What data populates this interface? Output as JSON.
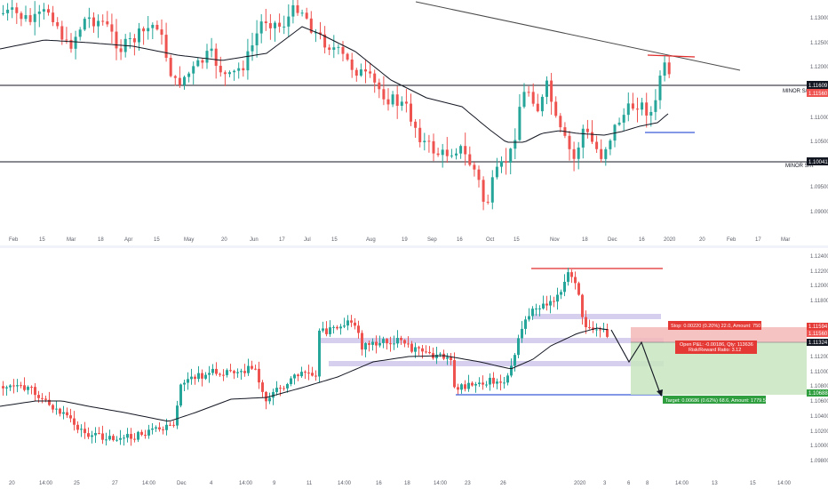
{
  "colors": {
    "up": "#26a69a",
    "down": "#ef5350",
    "ma": "#131722",
    "trendline": "#4a4a4a",
    "resistance": "#e02a2a",
    "support": "#3a5bd9",
    "sr_line": "#131722",
    "zone": "#c9bfe8",
    "stop_zone": "#f5b8b8",
    "target_zone": "#c8e6c0",
    "stop_badge": "#e53935",
    "target_badge": "#2e9e3e",
    "axis_text": "#5d606b",
    "price_badge_dark": "#131722"
  },
  "top_chart": {
    "price_axis": [
      "1.13000",
      "1.12500",
      "1.12000",
      "1.11609",
      "1.11560",
      "1.11000",
      "1.10500",
      "1.10041",
      "1.09500",
      "1.09000"
    ],
    "time_axis": [
      "Feb",
      "15",
      "Mar",
      "18",
      "Apr",
      "15",
      "May",
      "20",
      "Jun",
      "17",
      "Jul",
      "15",
      "Aug",
      "19",
      "Sep",
      "16",
      "Oct",
      "15",
      "Nov",
      "18",
      "Dec",
      "16",
      "2020",
      "20",
      "Feb",
      "17",
      "Mar"
    ],
    "labels": {
      "minor_sr_upper": "MINOR S/R",
      "minor_sr_lower": "MINOR S/R"
    }
  },
  "bottom_chart": {
    "price_axis": [
      "1.12400",
      "1.12200",
      "1.12000",
      "1.11800",
      "1.11594",
      "1.11560",
      "1.11324",
      "1.11200",
      "1.11000",
      "1.10800",
      "1.10688",
      "1.10600",
      "1.10400",
      "1.10200",
      "1.10000",
      "1.09800"
    ],
    "time_axis": [
      "20",
      "14:00",
      "25",
      "27",
      "14:00",
      "Dec",
      "4",
      "14:00",
      "9",
      "11",
      "14:00",
      "16",
      "18",
      "14:00",
      "23",
      "26",
      "2020",
      "3",
      "6",
      "8",
      "14:00",
      "13",
      "15",
      "14:00"
    ],
    "position": {
      "stop_text": "Stop: 0.00220 (0.20%) 22.0, Amount: 750",
      "open_text_1": "Open P&L: -0.00186, Qty: 113636",
      "open_text_2": "Risk/Reward Ratio: 3.12",
      "target_text": "Target: 0.00686 (0.62%) 68.6, Amount: 1779.54"
    }
  }
}
